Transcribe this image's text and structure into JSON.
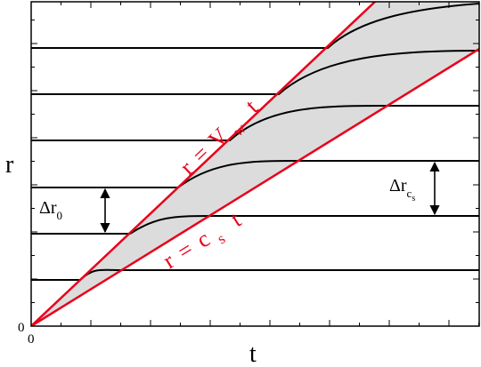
{
  "figure": {
    "y_axis_label": "r",
    "x_axis_label": "t",
    "origin_y_label": "0",
    "origin_x_label": "0",
    "line_color": "#e8001a",
    "fill_color": "#dcdcdc",
    "curve_color": "#000000",
    "equation_wall": {
      "lhs": "r",
      "eq": "=",
      "v": "V",
      "sub": "w",
      "t": "t"
    },
    "equation_sound": {
      "lhs": "r",
      "eq": "=",
      "c": "c",
      "sub": "s",
      "t": "t"
    },
    "delta_r0": {
      "delta": "Δr",
      "sub": "0"
    },
    "delta_rcs": {
      "delta": "Δr",
      "sub": "c",
      "subsub": "s"
    }
  }
}
